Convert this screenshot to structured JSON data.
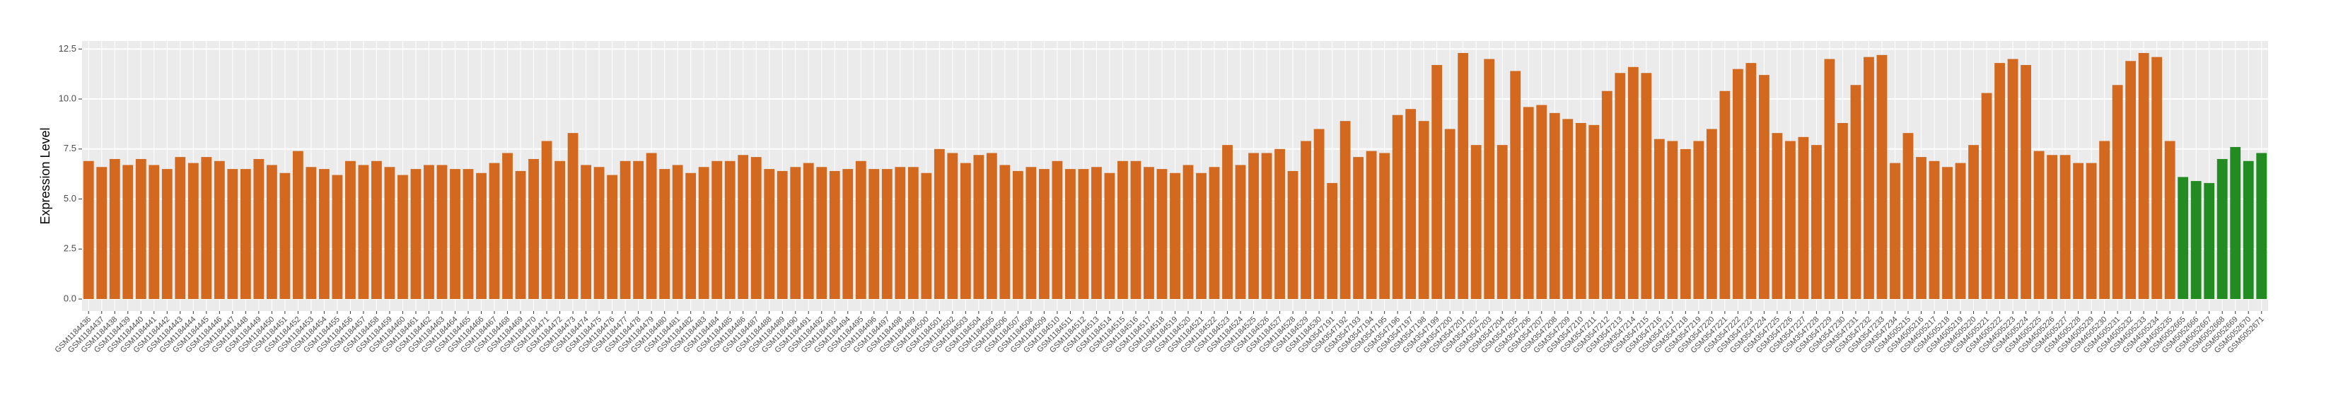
{
  "chart_data": {
    "type": "bar",
    "y_label": "Expression Level",
    "ylim": [
      -0.6,
      12.9
    ],
    "yticks": [
      {
        "value": 0,
        "label": "0.0"
      },
      2.5,
      {
        "value": 5,
        "label": "5.0"
      },
      7.5,
      {
        "value": 10,
        "label": "10.0"
      },
      12.5
    ],
    "grid": true,
    "categories": [
      "GSM1184436",
      "GSM1184437",
      "GSM1184438",
      "GSM1184439",
      "GSM1184440",
      "GSM1184441",
      "GSM1184442",
      "GSM1184443",
      "GSM1184444",
      "GSM1184445",
      "GSM1184446",
      "GSM1184447",
      "GSM1184448",
      "GSM1184449",
      "GSM1184450",
      "GSM1184451",
      "GSM1184452",
      "GSM1184453",
      "GSM1184454",
      "GSM1184455",
      "GSM1184456",
      "GSM1184457",
      "GSM1184458",
      "GSM1184459",
      "GSM1184460",
      "GSM1184461",
      "GSM1184462",
      "GSM1184463",
      "GSM1184464",
      "GSM1184465",
      "GSM1184466",
      "GSM1184467",
      "GSM1184468",
      "GSM1184469",
      "GSM1184470",
      "GSM1184471",
      "GSM1184472",
      "GSM1184473",
      "GSM1184474",
      "GSM1184475",
      "GSM1184476",
      "GSM1184477",
      "GSM1184478",
      "GSM1184479",
      "GSM1184480",
      "GSM1184481",
      "GSM1184482",
      "GSM1184483",
      "GSM1184484",
      "GSM1184485",
      "GSM1184486",
      "GSM1184487",
      "GSM1184488",
      "GSM1184489",
      "GSM1184490",
      "GSM1184491",
      "GSM1184492",
      "GSM1184493",
      "GSM1184494",
      "GSM1184495",
      "GSM1184496",
      "GSM1184497",
      "GSM1184498",
      "GSM1184499",
      "GSM1184500",
      "GSM1184501",
      "GSM1184502",
      "GSM1184503",
      "GSM1184504",
      "GSM1184505",
      "GSM1184506",
      "GSM1184507",
      "GSM1184508",
      "GSM1184509",
      "GSM1184510",
      "GSM1184511",
      "GSM1184512",
      "GSM1184513",
      "GSM1184514",
      "GSM1184515",
      "GSM1184516",
      "GSM1184517",
      "GSM1184518",
      "GSM1184519",
      "GSM1184520",
      "GSM1184521",
      "GSM1184522",
      "GSM1184523",
      "GSM1184524",
      "GSM1184525",
      "GSM1184526",
      "GSM1184527",
      "GSM1184528",
      "GSM1184529",
      "GSM1184530",
      "GSM3547191",
      "GSM3547192",
      "GSM3547193",
      "GSM3547194",
      "GSM3547195",
      "GSM3547196",
      "GSM3547197",
      "GSM3547198",
      "GSM3547199",
      "GSM3547200",
      "GSM3547201",
      "GSM3547202",
      "GSM3547203",
      "GSM3547204",
      "GSM3547205",
      "GSM3547206",
      "GSM3547207",
      "GSM3547208",
      "GSM3547209",
      "GSM3547210",
      "GSM3547211",
      "GSM3547212",
      "GSM3547213",
      "GSM3547214",
      "GSM3547215",
      "GSM3547216",
      "GSM3547217",
      "GSM3547218",
      "GSM3547219",
      "GSM3547220",
      "GSM3547221",
      "GSM3547222",
      "GSM3547223",
      "GSM3547224",
      "GSM3547225",
      "GSM3547226",
      "GSM3547227",
      "GSM3547228",
      "GSM3547229",
      "GSM3547230",
      "GSM3547231",
      "GSM3547232",
      "GSM3547233",
      "GSM3547234",
      "GSM4505215",
      "GSM4505216",
      "GSM4505217",
      "GSM4505218",
      "GSM4505219",
      "GSM4505220",
      "GSM4505221",
      "GSM4505222",
      "GSM4505223",
      "GSM4505224",
      "GSM4505225",
      "GSM4505226",
      "GSM4505227",
      "GSM4505228",
      "GSM4505229",
      "GSM4505230",
      "GSM4505231",
      "GSM4505232",
      "GSM4505233",
      "GSM4505234",
      "GSM4505235",
      "GSM5052665",
      "GSM5052666",
      "GSM5052667",
      "GSM5052668",
      "GSM5052669",
      "GSM5052670",
      "GSM5052671"
    ],
    "values": [
      6.9,
      6.6,
      7.0,
      6.7,
      7.0,
      6.7,
      6.5,
      7.1,
      6.8,
      7.1,
      6.9,
      6.5,
      6.5,
      7.0,
      6.7,
      6.3,
      7.4,
      6.6,
      6.5,
      6.2,
      6.9,
      6.7,
      6.9,
      6.6,
      6.2,
      6.5,
      6.7,
      6.7,
      6.5,
      6.5,
      6.3,
      6.8,
      7.3,
      6.4,
      7.0,
      7.9,
      6.9,
      8.3,
      6.7,
      6.6,
      6.2,
      6.9,
      6.9,
      7.3,
      6.5,
      6.7,
      6.3,
      6.6,
      6.9,
      6.9,
      7.2,
      7.1,
      6.5,
      6.4,
      6.6,
      6.8,
      6.6,
      6.4,
      6.5,
      6.9,
      6.5,
      6.5,
      6.6,
      6.6,
      6.3,
      7.5,
      7.3,
      6.8,
      7.2,
      7.3,
      6.7,
      6.4,
      6.6,
      6.5,
      6.9,
      6.5,
      6.5,
      6.6,
      6.3,
      6.9,
      6.9,
      6.6,
      6.5,
      6.3,
      6.7,
      6.3,
      6.6,
      7.7,
      6.7,
      7.3,
      7.3,
      7.5,
      6.4,
      7.9,
      8.5,
      5.8,
      8.9,
      7.1,
      7.4,
      7.3,
      9.2,
      9.5,
      8.9,
      11.7,
      8.5,
      12.3,
      7.7,
      12.0,
      7.7,
      11.4,
      9.6,
      9.7,
      9.3,
      9.0,
      8.8,
      8.7,
      10.4,
      11.3,
      11.6,
      11.3,
      8.0,
      7.9,
      7.5,
      7.9,
      8.5,
      10.4,
      11.5,
      11.8,
      11.2,
      8.3,
      7.9,
      8.1,
      7.7,
      12.0,
      8.8,
      10.7,
      12.1,
      12.2,
      6.8,
      8.3,
      7.1,
      6.9,
      6.6,
      6.8,
      7.7,
      10.3,
      11.8,
      12.0,
      11.7,
      7.4,
      7.2,
      7.2,
      6.8,
      6.8,
      7.9,
      10.7,
      11.9,
      12.3,
      12.1,
      7.9,
      6.1,
      5.9,
      5.8,
      7.0,
      7.6,
      6.9,
      7.3
    ],
    "colors": [
      "#D2691E",
      "#D2691E",
      "#D2691E",
      "#D2691E",
      "#D2691E",
      "#D2691E",
      "#D2691E",
      "#D2691E",
      "#D2691E",
      "#D2691E",
      "#D2691E",
      "#D2691E",
      "#D2691E",
      "#D2691E",
      "#D2691E",
      "#D2691E",
      "#D2691E",
      "#D2691E",
      "#D2691E",
      "#D2691E",
      "#D2691E",
      "#D2691E",
      "#D2691E",
      "#D2691E",
      "#D2691E",
      "#D2691E",
      "#D2691E",
      "#D2691E",
      "#D2691E",
      "#D2691E",
      "#D2691E",
      "#D2691E",
      "#D2691E",
      "#D2691E",
      "#D2691E",
      "#D2691E",
      "#D2691E",
      "#D2691E",
      "#D2691E",
      "#D2691E",
      "#D2691E",
      "#D2691E",
      "#D2691E",
      "#D2691E",
      "#D2691E",
      "#D2691E",
      "#D2691E",
      "#D2691E",
      "#D2691E",
      "#D2691E",
      "#D2691E",
      "#D2691E",
      "#D2691E",
      "#D2691E",
      "#D2691E",
      "#D2691E",
      "#D2691E",
      "#D2691E",
      "#D2691E",
      "#D2691E",
      "#D2691E",
      "#D2691E",
      "#D2691E",
      "#D2691E",
      "#D2691E",
      "#D2691E",
      "#D2691E",
      "#D2691E",
      "#D2691E",
      "#D2691E",
      "#D2691E",
      "#D2691E",
      "#D2691E",
      "#D2691E",
      "#D2691E",
      "#D2691E",
      "#D2691E",
      "#D2691E",
      "#D2691E",
      "#D2691E",
      "#D2691E",
      "#D2691E",
      "#D2691E",
      "#D2691E",
      "#D2691E",
      "#D2691E",
      "#D2691E",
      "#D2691E",
      "#D2691E",
      "#D2691E",
      "#D2691E",
      "#D2691E",
      "#D2691E",
      "#D2691E",
      "#D2691E",
      "#D2691E",
      "#D2691E",
      "#D2691E",
      "#D2691E",
      "#D2691E",
      "#D2691E",
      "#D2691E",
      "#D2691E",
      "#D2691E",
      "#D2691E",
      "#D2691E",
      "#D2691E",
      "#D2691E",
      "#D2691E",
      "#D2691E",
      "#D2691E",
      "#D2691E",
      "#D2691E",
      "#D2691E",
      "#D2691E",
      "#D2691E",
      "#D2691E",
      "#D2691E",
      "#D2691E",
      "#D2691E",
      "#D2691E",
      "#D2691E",
      "#D2691E",
      "#D2691E",
      "#D2691E",
      "#D2691E",
      "#D2691E",
      "#D2691E",
      "#D2691E",
      "#D2691E",
      "#D2691E",
      "#D2691E",
      "#D2691E",
      "#D2691E",
      "#D2691E",
      "#D2691E",
      "#D2691E",
      "#D2691E",
      "#D2691E",
      "#D2691E",
      "#D2691E",
      "#D2691E",
      "#D2691E",
      "#D2691E",
      "#D2691E",
      "#D2691E",
      "#D2691E",
      "#D2691E",
      "#D2691E",
      "#D2691E",
      "#D2691E",
      "#D2691E",
      "#D2691E",
      "#D2691E",
      "#D2691E",
      "#D2691E",
      "#D2691E",
      "#D2691E",
      "#D2691E",
      "#D2691E",
      "#228B22",
      "#228B22",
      "#228B22",
      "#228B22",
      "#228B22",
      "#228B22",
      "#228B22"
    ]
  }
}
